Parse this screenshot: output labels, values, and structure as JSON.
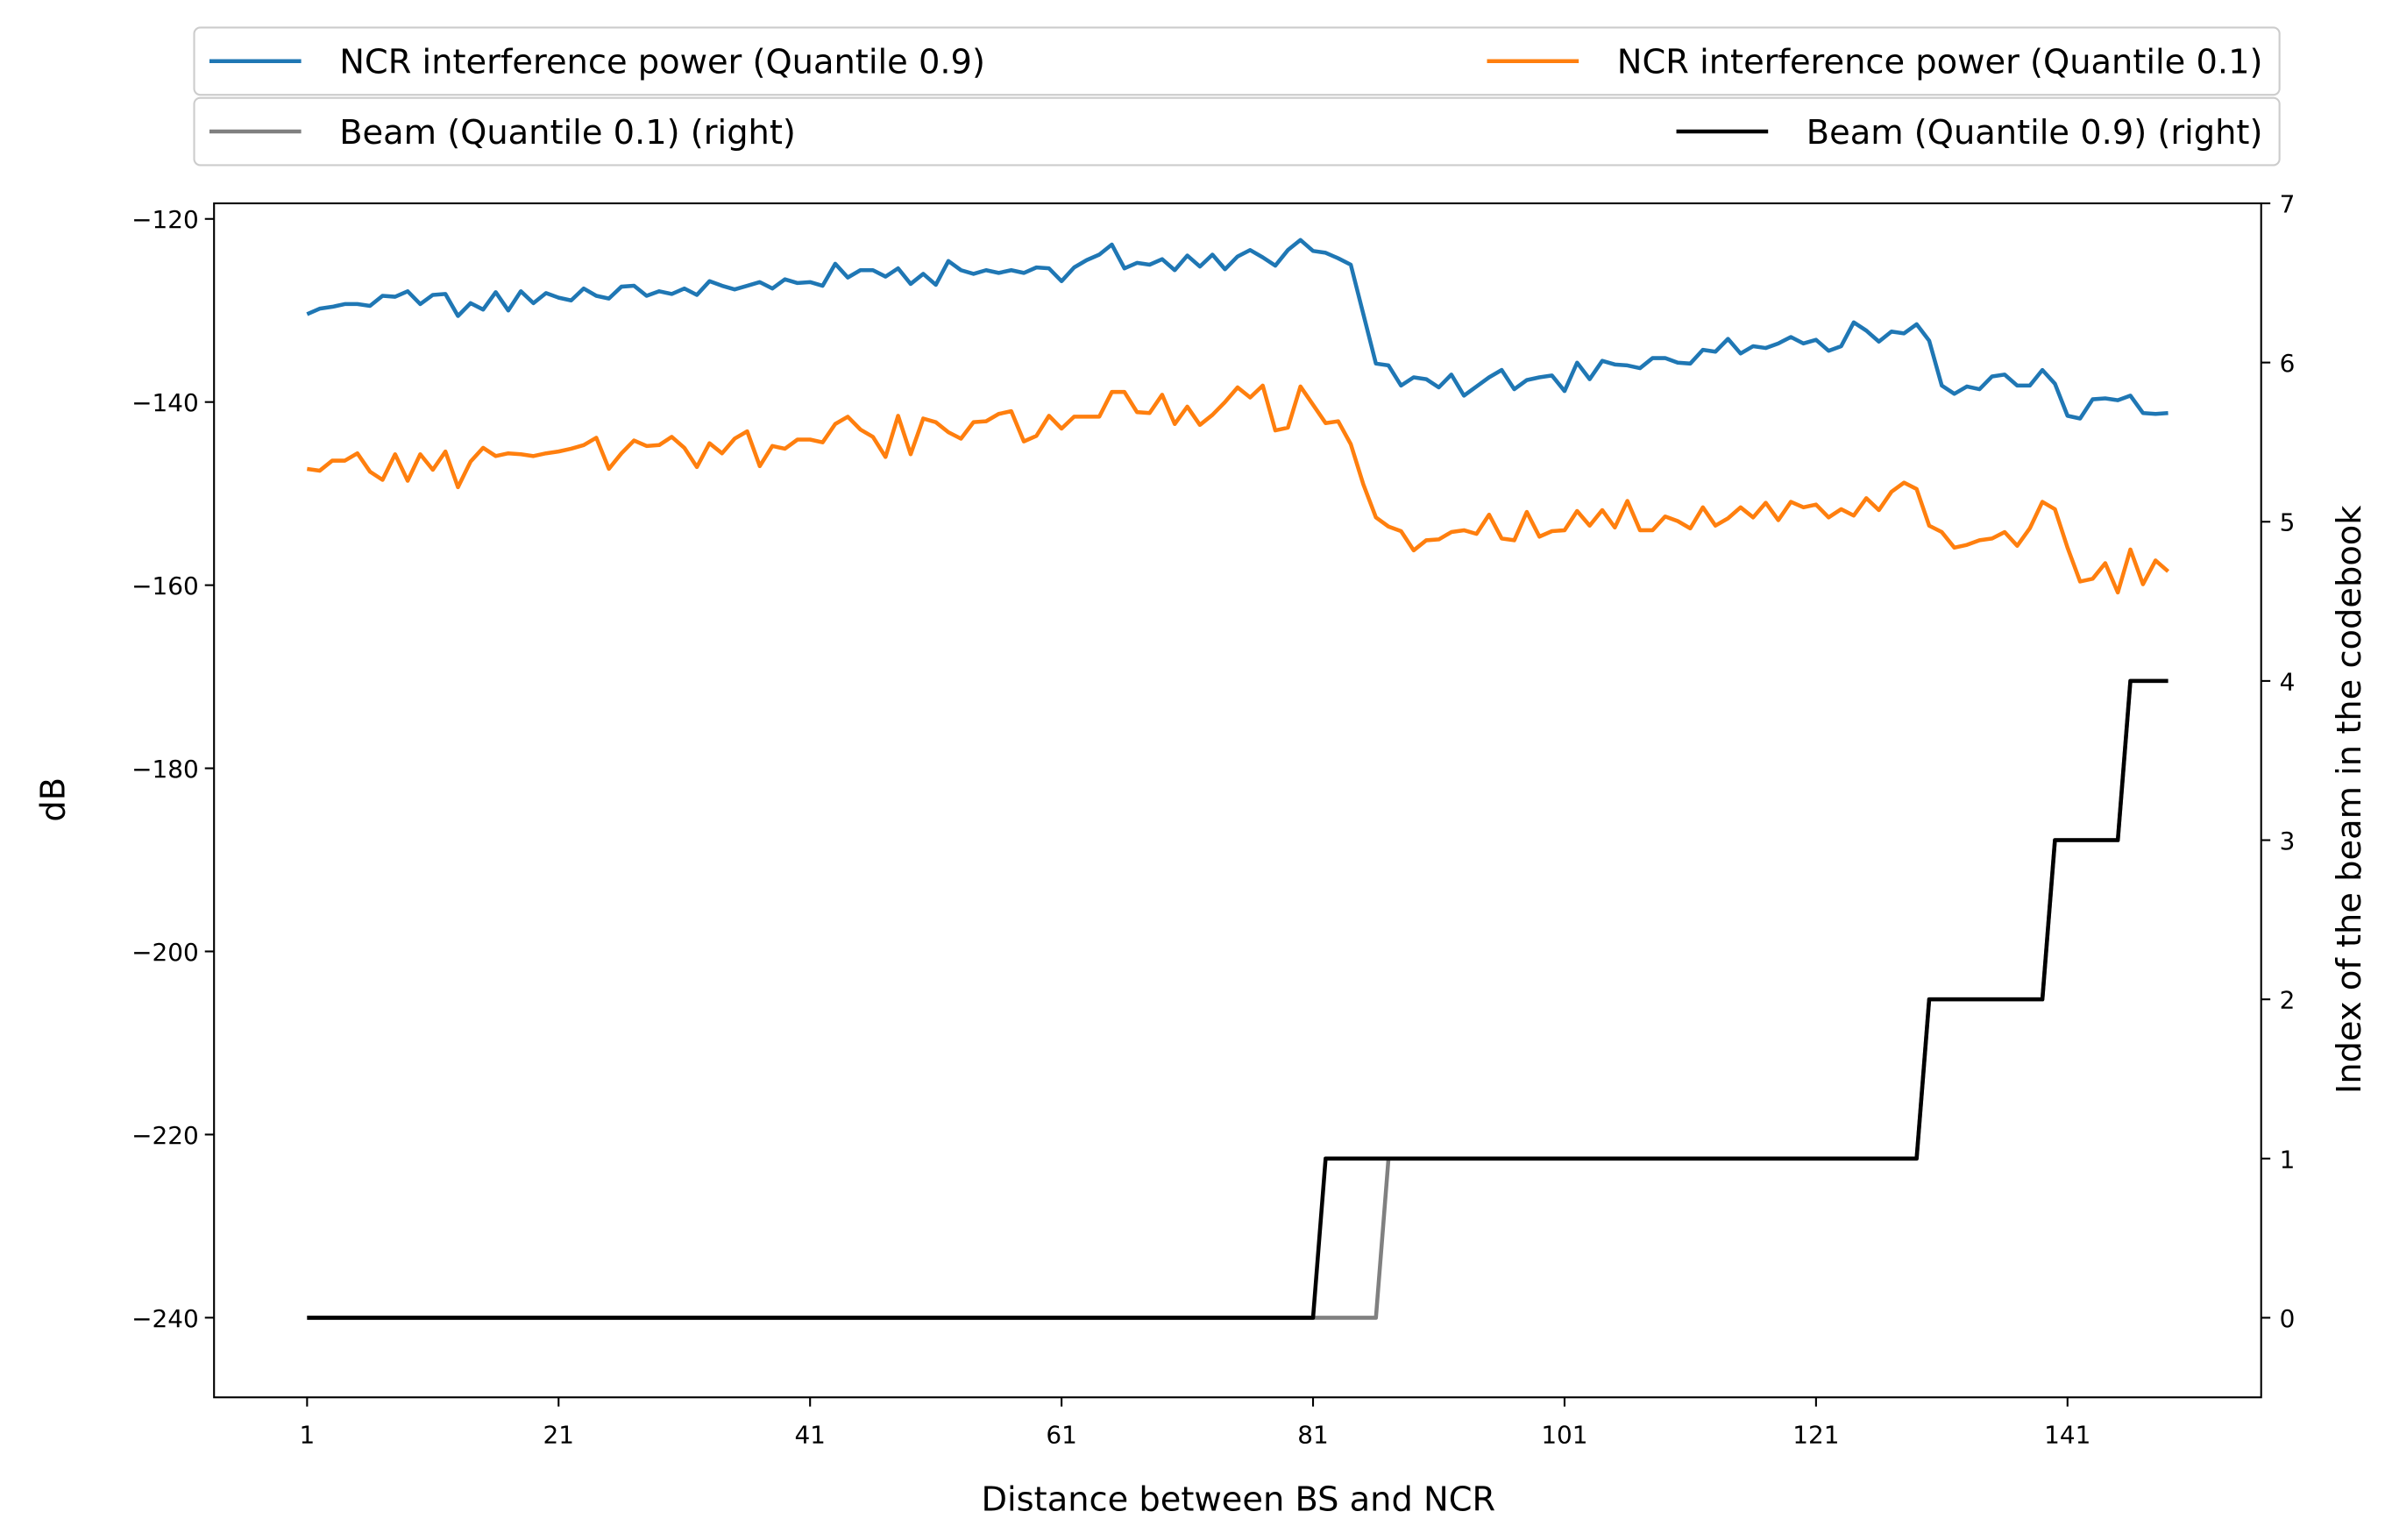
{
  "chart_data": {
    "type": "line",
    "x_label": "Distance between BS and NCR",
    "y_label": "dB",
    "y2_label": "Index of the beam in the codebook",
    "x": [
      1,
      2,
      3,
      4,
      5,
      6,
      7,
      8,
      9,
      10,
      11,
      12,
      13,
      14,
      15,
      16,
      17,
      18,
      19,
      20,
      21,
      22,
      23,
      24,
      25,
      26,
      27,
      28,
      29,
      30,
      31,
      32,
      33,
      34,
      35,
      36,
      37,
      38,
      39,
      40,
      41,
      42,
      43,
      44,
      45,
      46,
      47,
      48,
      49,
      50,
      51,
      52,
      53,
      54,
      55,
      56,
      57,
      58,
      59,
      60,
      61,
      62,
      63,
      64,
      65,
      66,
      67,
      68,
      69,
      70,
      71,
      72,
      73,
      74,
      75,
      76,
      77,
      78,
      79,
      80,
      81,
      82,
      83,
      84,
      85,
      86,
      87,
      88,
      89,
      90,
      91,
      92,
      93,
      94,
      95,
      96,
      97,
      98,
      99,
      100,
      101,
      102,
      103,
      104,
      105,
      106,
      107,
      108,
      109,
      110,
      111,
      112,
      113,
      114,
      115,
      116,
      117,
      118,
      119,
      120,
      121,
      122,
      123,
      124,
      125,
      126,
      127,
      128,
      129,
      130,
      131,
      132,
      133,
      134,
      135,
      136,
      137,
      138,
      139,
      140,
      141,
      142,
      143,
      144,
      145,
      146,
      147,
      148,
      149
    ],
    "xlim": [
      -6.4,
      156.4
    ],
    "xticks": [
      1,
      21,
      41,
      61,
      81,
      101,
      121,
      141
    ],
    "ylim": [
      -248.7,
      -118.3
    ],
    "yticks": [
      {
        "value": -240,
        "label": "−240"
      },
      {
        "value": -220,
        "label": "−220"
      },
      {
        "value": -200,
        "label": "−200"
      },
      {
        "value": -180,
        "label": "−180"
      },
      {
        "value": -160,
        "label": "−160"
      },
      {
        "value": -140,
        "label": "−140"
      },
      {
        "value": -120,
        "label": "−120"
      }
    ],
    "y2lim": [
      -0.5,
      7
    ],
    "y2ticks": [
      0,
      1,
      2,
      3,
      4,
      5,
      6,
      7
    ],
    "series": [
      {
        "name": "NCR interference power (Quantile 0.9)",
        "color": "#1f77b4",
        "values": [
          -130.4,
          -129.8,
          -129.6,
          -129.3,
          -129.3,
          -129.5,
          -128.4,
          -128.5,
          -127.9,
          -129.3,
          -128.3,
          -128.2,
          -130.6,
          -129.2,
          -129.9,
          -128.0,
          -130.0,
          -127.9,
          -129.2,
          -128.1,
          -128.6,
          -128.9,
          -127.6,
          -128.4,
          -128.7,
          -127.4,
          -127.3,
          -128.4,
          -127.9,
          -128.2,
          -127.6,
          -128.3,
          -126.8,
          -127.3,
          -127.7,
          -127.3,
          -126.9,
          -127.6,
          -126.6,
          -127.0,
          -126.9,
          -127.3,
          -124.9,
          -126.4,
          -125.6,
          -125.6,
          -126.3,
          -125.4,
          -127.1,
          -126.0,
          -127.2,
          -124.6,
          -125.6,
          -126.0,
          -125.6,
          -125.9,
          -125.6,
          -125.9,
          -125.3,
          -125.4,
          -126.8,
          -125.3,
          -124.5,
          -123.9,
          -122.8,
          -125.4,
          -124.8,
          -125.0,
          -124.4,
          -125.6,
          -124.0,
          -125.2,
          -123.9,
          -125.5,
          -124.1,
          -123.4,
          -124.2,
          -125.1,
          -123.4,
          -122.3,
          -123.5,
          -123.7,
          -124.3,
          -125.0,
          -130.4,
          -135.8,
          -136.0,
          -138.2,
          -137.3,
          -137.5,
          -138.4,
          -137.0,
          -139.3,
          -138.3,
          -137.3,
          -136.5,
          -138.6,
          -137.6,
          -137.3,
          -137.1,
          -138.8,
          -135.7,
          -137.5,
          -135.5,
          -135.9,
          -136.0,
          -136.3,
          -135.2,
          -135.2,
          -135.7,
          -135.8,
          -134.3,
          -134.5,
          -133.1,
          -134.7,
          -133.9,
          -134.1,
          -133.6,
          -132.9,
          -133.6,
          -133.2,
          -134.4,
          -133.9,
          -131.3,
          -132.2,
          -133.4,
          -132.3,
          -132.5,
          -131.5,
          -133.3,
          -138.2,
          -139.1,
          -138.3,
          -138.6,
          -137.2,
          -137.0,
          -138.2,
          -138.2,
          -136.5,
          -138.0,
          -141.5,
          -141.8,
          -139.7,
          -139.6,
          -139.8,
          -139.3,
          -141.2,
          -141.3,
          -141.2
        ]
      },
      {
        "name": "NCR interference power (Quantile 0.1)",
        "color": "#ff7f0e",
        "values": [
          -147.3,
          -147.5,
          -146.4,
          -146.4,
          -145.6,
          -147.6,
          -148.5,
          -145.7,
          -148.6,
          -145.7,
          -147.4,
          -145.4,
          -149.3,
          -146.5,
          -145.0,
          -145.9,
          -145.6,
          -145.7,
          -145.9,
          -145.6,
          -145.4,
          -145.1,
          -144.7,
          -143.9,
          -147.3,
          -145.6,
          -144.2,
          -144.8,
          -144.7,
          -143.8,
          -145.0,
          -147.1,
          -144.5,
          -145.6,
          -144.0,
          -143.2,
          -147.0,
          -144.8,
          -145.1,
          -144.1,
          -144.1,
          -144.4,
          -142.4,
          -141.6,
          -143.0,
          -143.8,
          -146.0,
          -141.5,
          -145.7,
          -141.8,
          -142.2,
          -143.3,
          -144.0,
          -142.2,
          -142.1,
          -141.3,
          -141.0,
          -144.3,
          -143.7,
          -141.5,
          -142.9,
          -141.6,
          -141.6,
          -141.6,
          -138.9,
          -138.9,
          -141.1,
          -141.2,
          -139.2,
          -142.4,
          -140.5,
          -142.5,
          -141.4,
          -140.0,
          -138.4,
          -139.5,
          -138.2,
          -143.1,
          -142.8,
          -138.3,
          -140.3,
          -142.3,
          -142.1,
          -144.6,
          -149.0,
          -152.6,
          -153.6,
          -154.1,
          -156.2,
          -155.1,
          -155.0,
          -154.2,
          -154.0,
          -154.4,
          -152.3,
          -154.9,
          -155.1,
          -152.0,
          -154.7,
          -154.1,
          -154.0,
          -151.9,
          -153.5,
          -151.8,
          -153.7,
          -150.8,
          -154.0,
          -154.0,
          -152.5,
          -153.0,
          -153.8,
          -151.5,
          -153.5,
          -152.7,
          -151.5,
          -152.6,
          -151.0,
          -152.9,
          -150.9,
          -151.5,
          -151.2,
          -152.6,
          -151.7,
          -152.4,
          -150.5,
          -151.8,
          -149.8,
          -148.8,
          -149.5,
          -153.5,
          -154.2,
          -155.9,
          -155.6,
          -155.1,
          -154.9,
          -154.2,
          -155.7,
          -153.8,
          -150.9,
          -151.7,
          -155.9,
          -159.6,
          -159.3,
          -157.6,
          -160.8,
          -156.1,
          -159.9,
          -157.3,
          -158.5
        ]
      },
      {
        "name": "Beam (Quantile 0.1) (right)",
        "color": "#808080",
        "axis": "y2",
        "values": [
          0,
          0,
          0,
          0,
          0,
          0,
          0,
          0,
          0,
          0,
          0,
          0,
          0,
          0,
          0,
          0,
          0,
          0,
          0,
          0,
          0,
          0,
          0,
          0,
          0,
          0,
          0,
          0,
          0,
          0,
          0,
          0,
          0,
          0,
          0,
          0,
          0,
          0,
          0,
          0,
          0,
          0,
          0,
          0,
          0,
          0,
          0,
          0,
          0,
          0,
          0,
          0,
          0,
          0,
          0,
          0,
          0,
          0,
          0,
          0,
          0,
          0,
          0,
          0,
          0,
          0,
          0,
          0,
          0,
          0,
          0,
          0,
          0,
          0,
          0,
          0,
          0,
          0,
          0,
          0,
          0,
          0,
          0,
          0,
          0,
          0,
          1,
          1,
          1,
          1,
          1,
          1,
          1,
          1,
          1,
          1,
          1,
          1,
          1,
          1,
          1,
          1,
          1,
          1,
          1,
          1,
          1,
          1,
          1,
          1,
          1,
          1,
          1,
          1,
          1,
          1,
          1,
          1,
          1,
          1,
          1,
          1,
          1,
          1,
          1,
          1,
          1,
          1,
          1,
          2,
          2,
          2,
          2,
          2,
          2,
          2,
          2,
          2,
          2,
          3,
          3,
          3,
          3,
          3,
          3,
          4,
          4,
          4,
          4
        ]
      },
      {
        "name": "Beam (Quantile 0.9) (right)",
        "color": "#000000",
        "axis": "y2",
        "values": [
          0,
          0,
          0,
          0,
          0,
          0,
          0,
          0,
          0,
          0,
          0,
          0,
          0,
          0,
          0,
          0,
          0,
          0,
          0,
          0,
          0,
          0,
          0,
          0,
          0,
          0,
          0,
          0,
          0,
          0,
          0,
          0,
          0,
          0,
          0,
          0,
          0,
          0,
          0,
          0,
          0,
          0,
          0,
          0,
          0,
          0,
          0,
          0,
          0,
          0,
          0,
          0,
          0,
          0,
          0,
          0,
          0,
          0,
          0,
          0,
          0,
          0,
          0,
          0,
          0,
          0,
          0,
          0,
          0,
          0,
          0,
          0,
          0,
          0,
          0,
          0,
          0,
          0,
          0,
          0,
          0,
          1,
          1,
          1,
          1,
          1,
          1,
          1,
          1,
          1,
          1,
          1,
          1,
          1,
          1,
          1,
          1,
          1,
          1,
          1,
          1,
          1,
          1,
          1,
          1,
          1,
          1,
          1,
          1,
          1,
          1,
          1,
          1,
          1,
          1,
          1,
          1,
          1,
          1,
          1,
          1,
          1,
          1,
          1,
          1,
          1,
          1,
          1,
          1,
          2,
          2,
          2,
          2,
          2,
          2,
          2,
          2,
          2,
          2,
          3,
          3,
          3,
          3,
          3,
          3,
          4,
          4,
          4,
          4
        ]
      }
    ]
  }
}
